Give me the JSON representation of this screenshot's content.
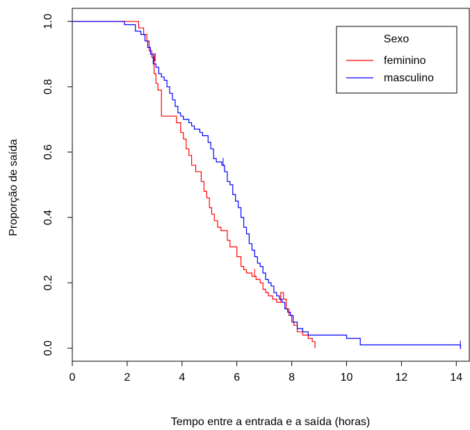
{
  "chart_data": {
    "type": "line",
    "xlabel": "Tempo entre a entrada e a saída (horas)",
    "ylabel": "Proporção de saída",
    "xlim": [
      0,
      14.5
    ],
    "ylim": [
      -0.04,
      1.04
    ],
    "xticks": [
      0,
      2,
      4,
      6,
      8,
      10,
      12,
      14
    ],
    "xtick_labels": [
      "0",
      "2",
      "4",
      "6",
      "8",
      "10",
      "12",
      "14"
    ],
    "yticks": [
      0.0,
      0.2,
      0.4,
      0.6,
      0.8,
      1.0
    ],
    "ytick_labels": [
      "0.0",
      "0.2",
      "0.4",
      "0.6",
      "0.8",
      "1.0"
    ],
    "grid": false,
    "legend": {
      "title": "Sexo",
      "position": "top-right"
    },
    "series": [
      {
        "name": "feminino",
        "color": "#ff0000",
        "step": true,
        "x": [
          0,
          2.42,
          2.6,
          2.72,
          2.8,
          2.9,
          2.98,
          3.05,
          3.12,
          3.25,
          3.8,
          3.95,
          4.05,
          4.15,
          4.25,
          4.35,
          4.5,
          4.7,
          4.8,
          4.9,
          5.0,
          5.08,
          5.18,
          5.3,
          5.42,
          5.55,
          5.65,
          5.75,
          5.85,
          6.0,
          6.15,
          6.25,
          6.35,
          6.45,
          6.55,
          6.7,
          6.85,
          6.95,
          7.05,
          7.15,
          7.3,
          7.45,
          7.6,
          7.7,
          7.8,
          7.9,
          8.0,
          8.08,
          8.2,
          8.4,
          8.6,
          8.75,
          8.85
        ],
        "y": [
          1.0,
          0.98,
          0.96,
          0.94,
          0.91,
          0.89,
          0.84,
          0.81,
          0.79,
          0.71,
          0.69,
          0.66,
          0.64,
          0.61,
          0.59,
          0.56,
          0.54,
          0.51,
          0.48,
          0.46,
          0.43,
          0.41,
          0.39,
          0.37,
          0.36,
          0.36,
          0.33,
          0.31,
          0.31,
          0.28,
          0.25,
          0.24,
          0.23,
          0.23,
          0.22,
          0.21,
          0.2,
          0.18,
          0.17,
          0.16,
          0.15,
          0.14,
          0.17,
          0.15,
          0.12,
          0.1,
          0.08,
          0.07,
          0.05,
          0.04,
          0.03,
          0.02,
          0.0
        ],
        "censored": [
          {
            "x": 3.0,
            "y": 0.89
          },
          {
            "x": 6.65,
            "y": 0.23
          }
        ]
      },
      {
        "name": "masculino",
        "color": "#0000ff",
        "step": true,
        "x": [
          0,
          1.9,
          2.3,
          2.5,
          2.65,
          2.75,
          2.85,
          2.95,
          3.05,
          3.15,
          3.25,
          3.35,
          3.45,
          3.55,
          3.65,
          3.75,
          3.85,
          3.95,
          4.05,
          4.15,
          4.25,
          4.35,
          4.45,
          4.55,
          4.65,
          4.75,
          4.85,
          4.95,
          5.05,
          5.15,
          5.25,
          5.35,
          5.45,
          5.55,
          5.65,
          5.75,
          5.85,
          5.95,
          6.05,
          6.15,
          6.25,
          6.35,
          6.45,
          6.55,
          6.65,
          6.75,
          6.85,
          6.95,
          7.05,
          7.15,
          7.25,
          7.35,
          7.45,
          7.55,
          7.65,
          7.75,
          7.85,
          7.95,
          8.05,
          8.2,
          8.4,
          8.6,
          10.0,
          10.5,
          14.15
        ],
        "y": [
          1.0,
          0.99,
          0.97,
          0.96,
          0.94,
          0.92,
          0.9,
          0.87,
          0.86,
          0.84,
          0.83,
          0.82,
          0.8,
          0.78,
          0.76,
          0.74,
          0.72,
          0.71,
          0.7,
          0.7,
          0.69,
          0.68,
          0.67,
          0.67,
          0.66,
          0.65,
          0.65,
          0.63,
          0.61,
          0.58,
          0.57,
          0.57,
          0.56,
          0.54,
          0.51,
          0.5,
          0.47,
          0.45,
          0.43,
          0.4,
          0.37,
          0.35,
          0.32,
          0.3,
          0.28,
          0.26,
          0.25,
          0.23,
          0.21,
          0.2,
          0.19,
          0.17,
          0.16,
          0.15,
          0.14,
          0.12,
          0.11,
          0.1,
          0.08,
          0.06,
          0.05,
          0.04,
          0.03,
          0.01,
          0.0
        ],
        "censored": [
          {
            "x": 3.02,
            "y": 0.89
          },
          {
            "x": 5.5,
            "y": 0.57
          },
          {
            "x": 14.15,
            "y": 0.01
          }
        ]
      }
    ]
  }
}
